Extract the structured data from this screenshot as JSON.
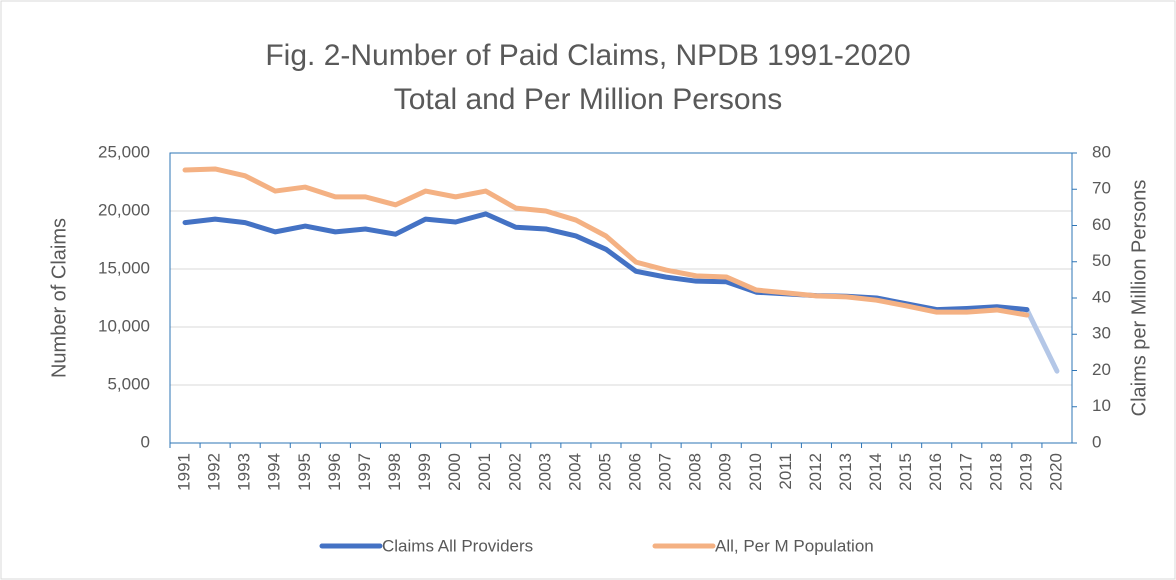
{
  "chart_data": {
    "type": "line",
    "title": "Fig. 2-Number of Paid Claims, NPDB 1991-2020",
    "subtitle": "Total and Per Million Persons",
    "y_label": "Number of Claims",
    "y2_label": "Claims per Million Persons",
    "categories": [
      "1991",
      "1992",
      "1993",
      "1994",
      "1995",
      "1996",
      "1997",
      "1998",
      "1999",
      "2000",
      "2001",
      "2002",
      "2003",
      "2004",
      "2005",
      "2006",
      "2007",
      "2008",
      "2009",
      "2010",
      "2011",
      "2012",
      "2013",
      "2014",
      "2015",
      "2016",
      "2017",
      "2018",
      "2019",
      "2020"
    ],
    "series": [
      {
        "name": "Claims All Providers",
        "color": "#4472c4",
        "last_segment_color": "#b4c7e7",
        "values": [
          19000,
          19300,
          19000,
          18200,
          18700,
          18200,
          18450,
          18000,
          19300,
          19050,
          19750,
          18600,
          18450,
          17850,
          16700,
          14800,
          14300,
          13950,
          13900,
          13000,
          12850,
          12700,
          12650,
          12500,
          12000,
          11500,
          11600,
          11750,
          11500,
          6200
        ]
      },
      {
        "name": "All, Per M Population",
        "color": "#f4b183",
        "axis": "y2",
        "values": [
          75.3,
          75.6,
          73.7,
          69.5,
          70.6,
          67.9,
          67.9,
          65.7,
          69.5,
          67.9,
          69.5,
          64.8,
          64.0,
          61.5,
          57.1,
          49.9,
          47.7,
          46.1,
          45.8,
          42.2,
          41.4,
          40.6,
          40.3,
          39.4,
          37.8,
          36.1,
          36.1,
          36.7,
          35.3,
          null
        ]
      }
    ],
    "ylim": [
      0,
      25000
    ],
    "yticks": [
      0,
      {
        "value": 5000,
        "label": "5,000"
      },
      {
        "value": 10000,
        "label": "10,000"
      },
      {
        "value": 15000,
        "label": "15,000"
      },
      {
        "value": 20000,
        "label": "20,000"
      },
      {
        "value": 25000,
        "label": "25,000"
      }
    ],
    "y2lim": [
      0,
      80
    ],
    "y2ticks": [
      0,
      10,
      20,
      30,
      40,
      50,
      60,
      70,
      80
    ],
    "grid": true,
    "legend": "bottom"
  }
}
